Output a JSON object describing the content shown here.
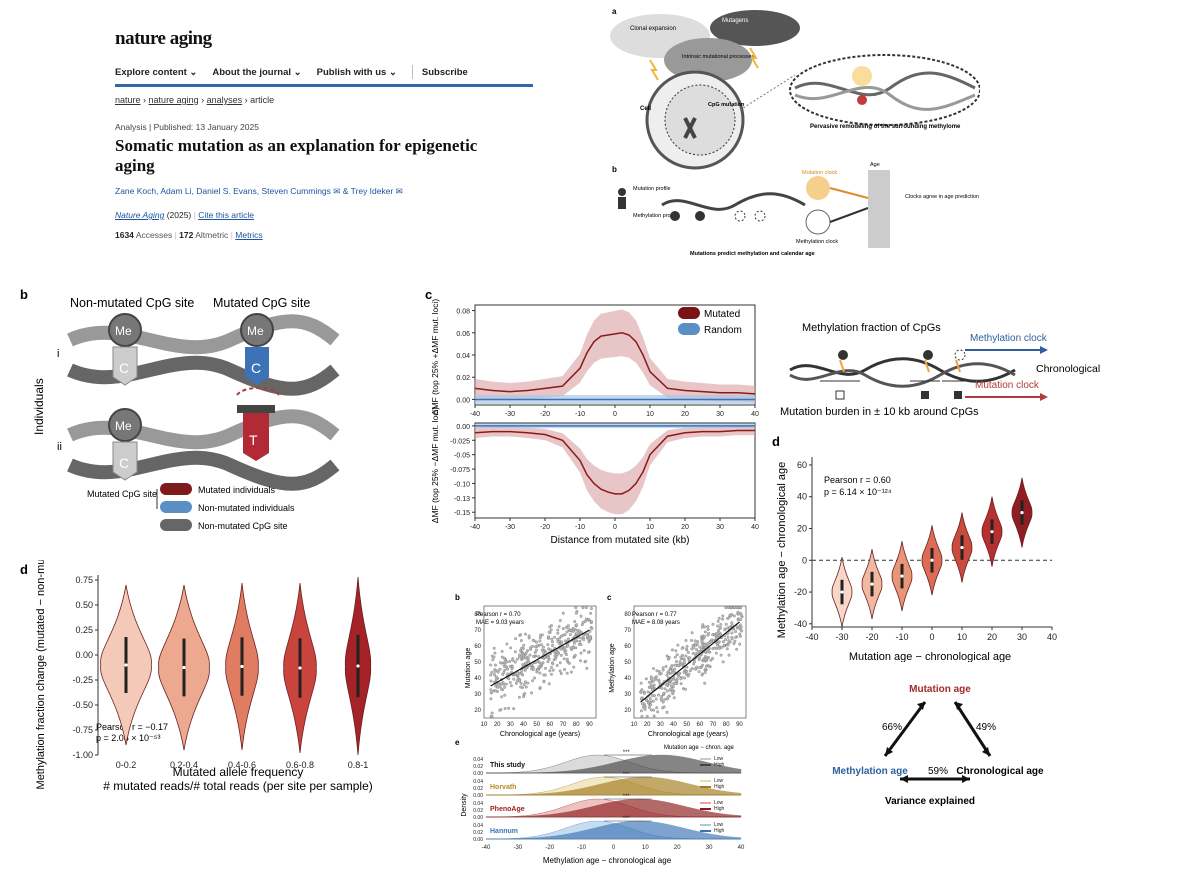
{
  "article": {
    "logo": "nature aging",
    "nav": [
      "Explore content ⌄",
      "About the journal ⌄",
      "Publish with us ⌄",
      "Subscribe"
    ],
    "breadcrumbs": [
      "nature",
      "nature aging",
      "analyses",
      "article"
    ],
    "meta": "Analysis  |  Published: 13 January 2025",
    "title": "Somatic mutation as an explanation for epigenetic aging",
    "authors": "Zane Koch, Adam Li, Daniel S. Evans, Steven Cummings ✉ & Trey Ideker ✉",
    "journal": "Nature Aging",
    "year": "(2025)",
    "cite": "Cite this article",
    "accesses_num": "1634",
    "accesses_label": "Accesses",
    "altmetric_num": "172",
    "altmetric_label": "Altmetric",
    "metrics": "Metrics"
  },
  "schematic_top": {
    "a": "a",
    "clonal": "Clonal expansion",
    "mutagens": "Mutagens",
    "intrinsic": "Intrinsic mutational processes",
    "cell": "Cell",
    "cpg_mut": "CpG mutation",
    "remodel": "Pervasive remodeling of the surrounding methylome",
    "b": "b",
    "mut_profile": "Mutation profile",
    "meth_profile": "Methylation profile",
    "mut_clock": "Mutation clock",
    "meth_clock": "Methylation clock",
    "age": "Age",
    "agree": "Clocks agree in age prediction",
    "bottom": "Mutations predict methylation and calendar age"
  },
  "panel_b_dna": {
    "letter": "b",
    "nonmut": "Non-mutated CpG site",
    "mut": "Mutated CpG site",
    "me": "Me",
    "c": "C",
    "tt": "T",
    "i": "i",
    "ii": "ii",
    "individuals": "Individuals",
    "legend_head": "Mutated CpG site",
    "legend": [
      "Mutated individuals",
      "Non-mutated individuals",
      "Non-mutated CpG site"
    ]
  },
  "panel_c_profile": {
    "letter": "c",
    "ylabel_top": "ΔMF (top 25% +ΔMF mut. loci)",
    "ylabel_bot": "ΔMF (top 25% −ΔMF mut. loci)",
    "xlabel": "Distance from mutated site (kb)",
    "legend": [
      "Mutated",
      "Random"
    ]
  },
  "schematic_right": {
    "title": "Methylation fraction of CpGs",
    "meth_clock": "Methylation clock",
    "mut_clock": "Mutation clock",
    "chron": "Chronological age",
    "burden": "Mutation burden in ± 10 kb around CpGs"
  },
  "panel_d_right": {
    "letter": "d",
    "pearson": "Pearson r = 0.60",
    "p": "p = 6.14 × 10⁻¹²⁴",
    "ylabel": "Methylation age − chronological age",
    "xlabel": "Mutation age − chronological age"
  },
  "triangle": {
    "mut": "Mutation age",
    "meth": "Methylation age",
    "chron": "Chronological age",
    "p66": "66%",
    "p49": "49%",
    "p59": "59%",
    "variance": "Variance explained"
  },
  "panel_d_left": {
    "letter": "d",
    "pearson": "Pearson r = −0.17",
    "p": "p = 2.08 × 10⁻⁵³",
    "ylabel": "Methylation fraction change (mutated − non-mutated)",
    "xlabel1": "Mutated allele frequency",
    "xlabel2": "# mutated reads/# total reads (per site per sample)"
  },
  "scatter_b": {
    "letter": "b",
    "pearson": "Pearson r = 0.70",
    "mae": "MAE = 9.03 years",
    "ylabel": "Mutation age",
    "xlabel": "Chronological age (years)"
  },
  "scatter_c": {
    "letter": "c",
    "pearson": "Pearson r = 0.77",
    "mae": "MAE = 8.08 years",
    "ylabel": "Methylation age",
    "xlabel": "Chronological age (years)"
  },
  "density_e": {
    "letter": "e",
    "legend_title": "Mutation age − chron. age",
    "rows": [
      "This study",
      "Horvath",
      "PhenoAge",
      "Hannum"
    ],
    "low": "Low",
    "high": "High",
    "sig": "***",
    "ylabel": "Density",
    "xlabel": "Methylation age − chronological age"
  },
  "chart_data": [
    {
      "type": "line",
      "panel": "c-top",
      "x": [
        -40,
        -35,
        -30,
        -25,
        -20,
        -15,
        -10,
        -8,
        -6,
        -4,
        -2,
        0,
        2,
        4,
        6,
        8,
        10,
        15,
        20,
        25,
        30,
        35,
        40
      ],
      "series": [
        {
          "name": "Mutated",
          "values": [
            0.01,
            0.008,
            0.007,
            0.008,
            0.01,
            0.012,
            0.028,
            0.042,
            0.052,
            0.057,
            0.058,
            0.059,
            0.06,
            0.058,
            0.052,
            0.04,
            0.025,
            0.01,
            0.008,
            0.007,
            0.006,
            0.006,
            0.005
          ]
        },
        {
          "name": "Random",
          "values": [
            0,
            0,
            0,
            0,
            0,
            0,
            0,
            0,
            0,
            0,
            0,
            0,
            0,
            0,
            0,
            0,
            0,
            0,
            0,
            0,
            0,
            0,
            0
          ]
        }
      ],
      "xlim": [
        -40,
        40
      ],
      "ylim": [
        -0.005,
        0.085
      ],
      "yticks": [
        0.0,
        0.02,
        0.04,
        0.06,
        0.08
      ]
    },
    {
      "type": "line",
      "panel": "c-bottom",
      "x": [
        -40,
        -35,
        -30,
        -25,
        -20,
        -15,
        -10,
        -8,
        -6,
        -4,
        -2,
        0,
        2,
        4,
        6,
        8,
        10,
        15,
        20,
        25,
        30,
        35,
        40
      ],
      "series": [
        {
          "name": "Mutated",
          "values": [
            -0.012,
            -0.01,
            -0.01,
            -0.012,
            -0.015,
            -0.025,
            -0.06,
            -0.085,
            -0.1,
            -0.11,
            -0.115,
            -0.118,
            -0.118,
            -0.112,
            -0.1,
            -0.08,
            -0.05,
            -0.018,
            -0.012,
            -0.01,
            -0.01,
            -0.008,
            -0.008
          ]
        },
        {
          "name": "Random",
          "values": [
            0,
            0,
            0,
            0,
            0,
            0,
            0,
            0,
            0,
            0,
            0,
            0,
            0,
            0,
            0,
            0,
            0,
            0,
            0,
            0,
            0,
            0,
            0
          ]
        }
      ],
      "xlim": [
        -40,
        40
      ],
      "ylim": [
        -0.16,
        0.005
      ],
      "yticks": [
        0.0,
        -0.025,
        -0.05,
        -0.075,
        -0.1,
        -0.125,
        -0.15
      ]
    },
    {
      "type": "violin",
      "panel": "d-left",
      "categories": [
        "0-0.2",
        "0.2-0.4",
        "0.4-0.6",
        "0.6-0.8",
        "0.8-1"
      ],
      "medians": [
        0.0,
        -0.02,
        -0.05,
        -0.1,
        -0.25
      ],
      "ylim": [
        -1.0,
        0.8
      ],
      "yticks": [
        0.75,
        0.5,
        0.25,
        0.0,
        -0.25,
        -0.5,
        -0.75,
        -1.0
      ]
    },
    {
      "type": "violin",
      "panel": "d-right",
      "x": [
        -30,
        -20,
        -10,
        0,
        10,
        20,
        30
      ],
      "medians": [
        -20,
        -15,
        -10,
        0,
        8,
        18,
        30
      ],
      "xlim": [
        -40,
        40
      ],
      "ylim": [
        -42,
        65
      ],
      "xticks": [
        -40,
        -30,
        -20,
        -10,
        0,
        10,
        20,
        30,
        40
      ],
      "yticks": [
        60,
        40,
        20,
        0,
        -20,
        -40
      ]
    },
    {
      "type": "scatter",
      "panel": "b-scatter",
      "xlim": [
        10,
        95
      ],
      "ylim": [
        15,
        85
      ],
      "fit": [
        [
          15,
          35
        ],
        [
          90,
          70
        ]
      ],
      "xticks": [
        10,
        20,
        30,
        40,
        50,
        60,
        70,
        80,
        90
      ],
      "yticks": [
        20,
        30,
        40,
        50,
        60,
        70,
        80
      ]
    },
    {
      "type": "scatter",
      "panel": "c-scatter",
      "xlim": [
        10,
        95
      ],
      "ylim": [
        15,
        85
      ],
      "fit": [
        [
          15,
          25
        ],
        [
          90,
          75
        ]
      ],
      "xticks": [
        10,
        20,
        30,
        40,
        50,
        60,
        70,
        80,
        90
      ],
      "yticks": [
        20,
        30,
        40,
        50,
        60,
        70,
        80
      ]
    },
    {
      "type": "area",
      "panel": "e-density",
      "xlim": [
        -40,
        40
      ],
      "xticks": [
        -40,
        -30,
        -20,
        -10,
        0,
        10,
        20,
        30,
        40
      ],
      "yticks": [
        0.0,
        0.02,
        0.04
      ],
      "rows": [
        {
          "name": "This study",
          "low_mean": -5,
          "high_mean": 15
        },
        {
          "name": "Horvath",
          "low_mean": -3,
          "high_mean": 10
        },
        {
          "name": "PhenoAge",
          "low_mean": -5,
          "high_mean": 8
        },
        {
          "name": "Hannum",
          "low_mean": -5,
          "high_mean": 8
        }
      ]
    }
  ]
}
